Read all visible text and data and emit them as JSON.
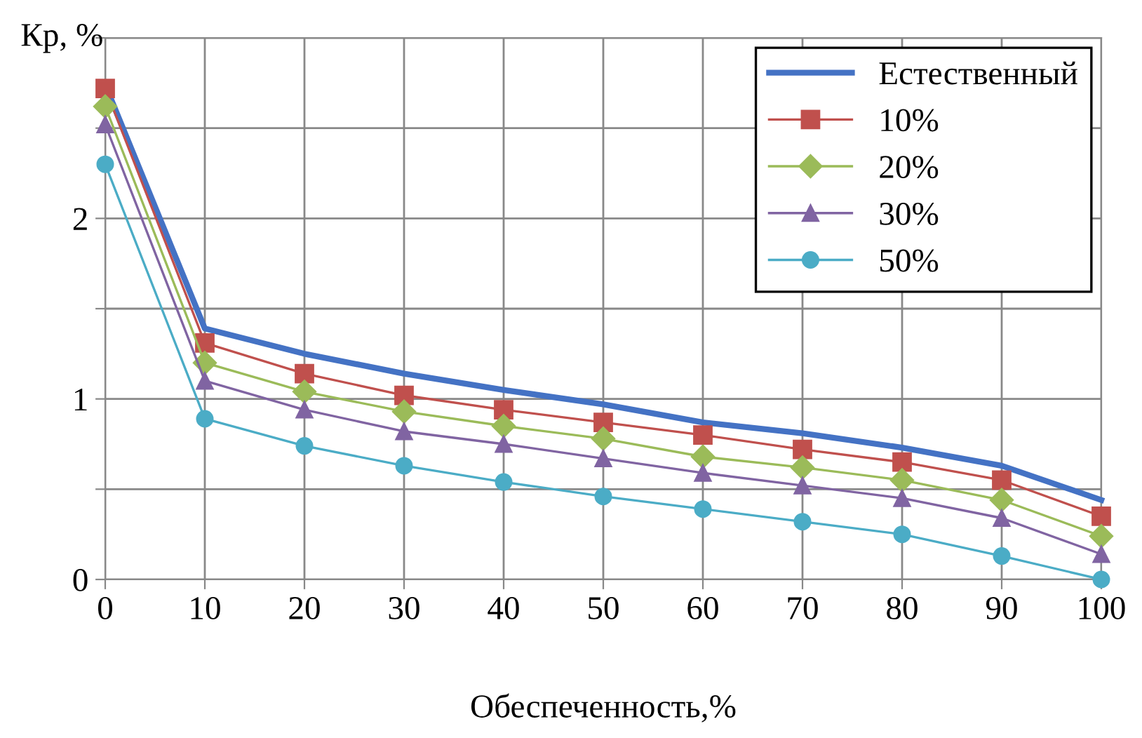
{
  "chart_data": {
    "type": "line",
    "xlabel": "Обеспеченность,%",
    "ylabel": "Кр, %",
    "x": [
      0,
      10,
      20,
      30,
      40,
      50,
      60,
      70,
      80,
      90,
      100
    ],
    "xlim": [
      0,
      100
    ],
    "xticks": [
      0,
      10,
      20,
      30,
      40,
      50,
      60,
      70,
      80,
      90,
      100
    ],
    "ylim": [
      0,
      3
    ],
    "yticks": [
      0,
      {
        "value": 0.5,
        "label": null
      },
      1,
      {
        "value": 1.5,
        "label": null
      },
      2,
      {
        "value": 2.5,
        "label": null
      },
      {
        "value": 3,
        "label": null
      }
    ],
    "grid": true,
    "legend": "top right",
    "series": [
      {
        "name": "Естественный",
        "color": "#4472c4",
        "marker": "none",
        "values": [
          2.74,
          1.39,
          1.25,
          1.14,
          1.05,
          0.97,
          0.87,
          0.81,
          0.73,
          0.63,
          0.44
        ]
      },
      {
        "name": "10%",
        "color": "#c0504d",
        "marker": "square",
        "values": [
          2.72,
          1.31,
          1.14,
          1.02,
          0.94,
          0.87,
          0.8,
          0.72,
          0.65,
          0.55,
          0.35
        ]
      },
      {
        "name": "20%",
        "color": "#9bbb59",
        "marker": "diamond",
        "values": [
          2.62,
          1.2,
          1.04,
          0.93,
          0.85,
          0.78,
          0.68,
          0.62,
          0.55,
          0.44,
          0.24
        ]
      },
      {
        "name": "30%",
        "color": "#8064a2",
        "marker": "triangle",
        "values": [
          2.52,
          1.1,
          0.94,
          0.82,
          0.75,
          0.67,
          0.59,
          0.52,
          0.45,
          0.34,
          0.14
        ]
      },
      {
        "name": "50%",
        "color": "#4bacc6",
        "marker": "circle",
        "values": [
          2.3,
          0.89,
          0.74,
          0.63,
          0.54,
          0.46,
          0.39,
          0.32,
          0.25,
          0.13,
          0.0
        ]
      }
    ]
  }
}
